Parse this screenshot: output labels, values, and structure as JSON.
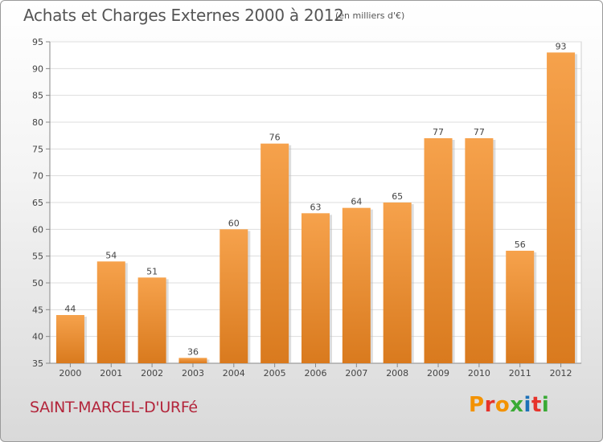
{
  "header": {
    "title": "Achats et Charges Externes 2000 à 2012",
    "unit": "(en milliers d'€)"
  },
  "footer": {
    "commune": "SAINT-MARCEL-D'URFé",
    "logo": "Proxiti"
  },
  "colors": {
    "bar_top": "#f6a24c",
    "bar_bottom": "#d97a1e",
    "commune_text": "#b3253b",
    "logo_letters": [
      "#f39200",
      "#e6332a",
      "#f39200",
      "#3aaa35",
      "#1d71b8",
      "#e6332a",
      "#3aaa35"
    ]
  },
  "chart_data": {
    "type": "bar",
    "categories": [
      "2000",
      "2001",
      "2002",
      "2003",
      "2004",
      "2005",
      "2006",
      "2007",
      "2008",
      "2009",
      "2010",
      "2011",
      "2012"
    ],
    "values": [
      44,
      54,
      51,
      36,
      60,
      76,
      63,
      64,
      65,
      77,
      77,
      56,
      93
    ],
    "title": "Achats et Charges Externes 2000 à 2012",
    "unit": "(en milliers d'€)",
    "ylim": [
      35,
      95
    ],
    "yticks": [
      35,
      40,
      45,
      50,
      55,
      60,
      65,
      70,
      75,
      80,
      85,
      90,
      95
    ],
    "grid": true,
    "data_labels": true
  }
}
